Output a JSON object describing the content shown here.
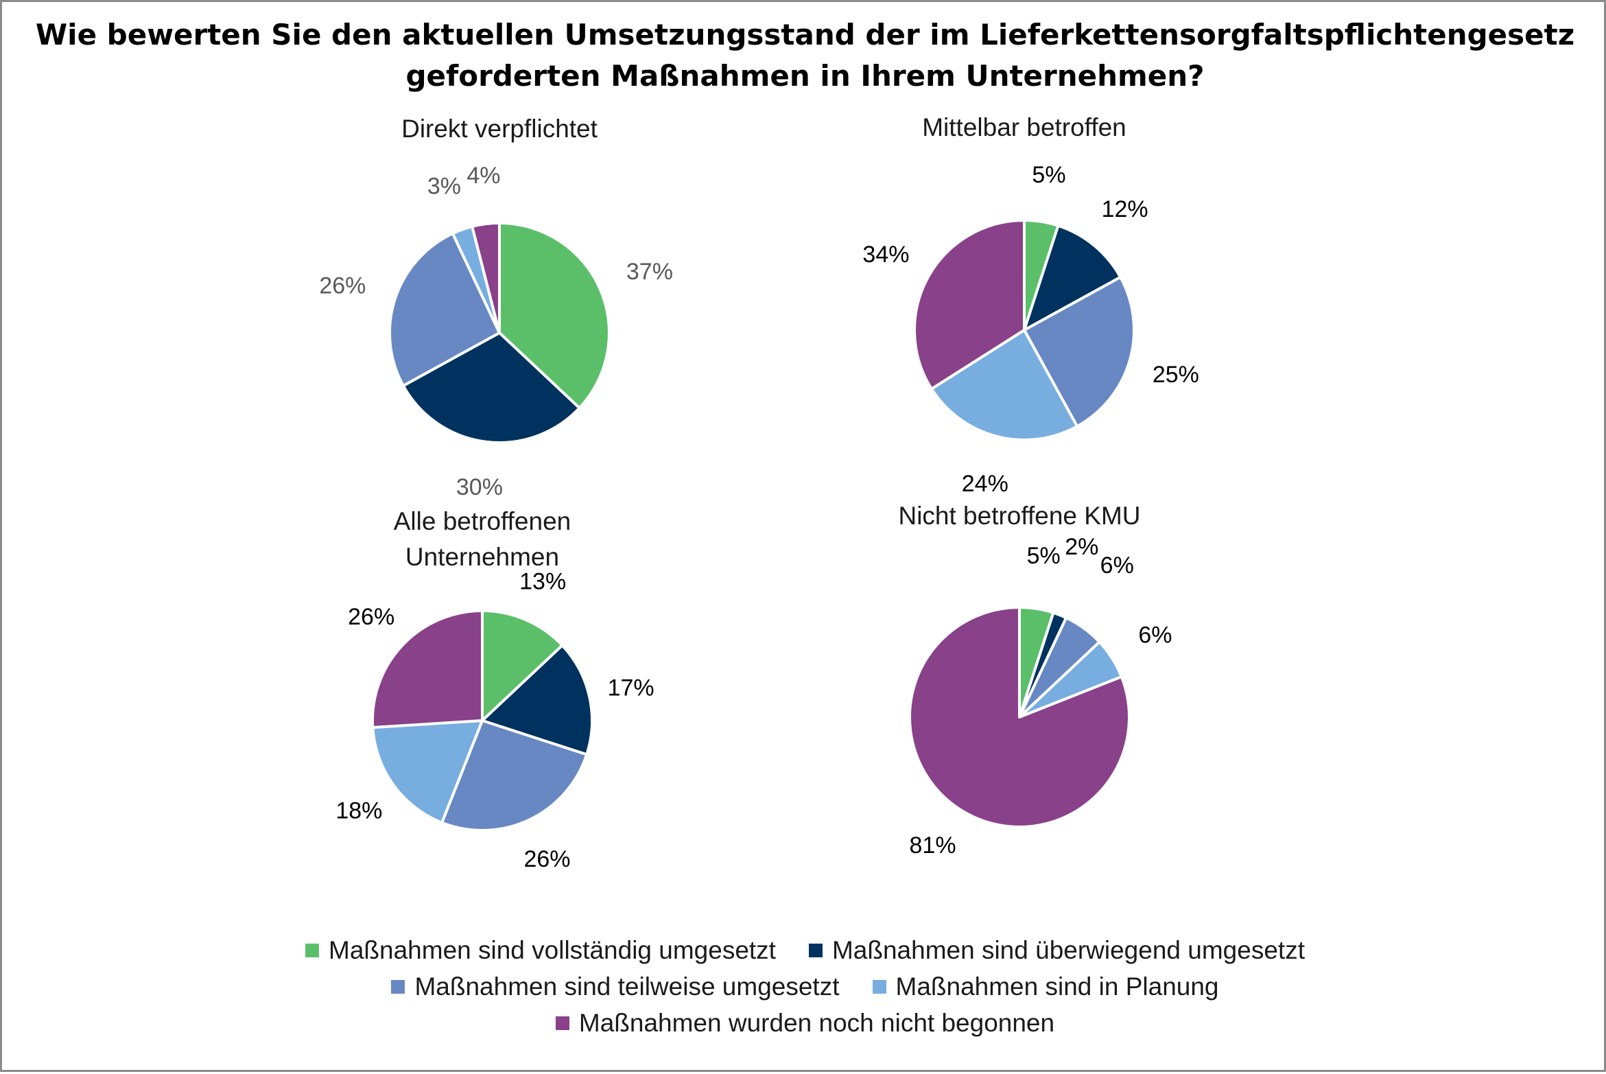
{
  "title": {
    "line1": "Wie bewerten Sie den aktuellen Umsetzungsstand der im Lieferkettensorgfaltspflichtengesetz",
    "line2": "geforderten Maßnahmen in Ihrem Unternehmen?"
  },
  "categories": [
    "Maßnahmen sind vollständig umgesetzt",
    "Maßnahmen sind überwiegend umgesetzt",
    "Maßnahmen sind teilweise umgesetzt",
    "Maßnahmen sind in Planung",
    "Maßnahmen wurden noch nicht begonnen"
  ],
  "colors": [
    "#5bbf6a",
    "#00325f",
    "#6888c3",
    "#78ade0",
    "#89418a"
  ],
  "chart_data": [
    {
      "type": "pie",
      "title": "Direkt verpflichtet",
      "categories": [
        "Maßnahmen sind vollständig umgesetzt",
        "Maßnahmen sind überwiegend umgesetzt",
        "Maßnahmen sind teilweise umgesetzt",
        "Maßnahmen sind in Planung",
        "Maßnahmen wurden noch nicht begonnen"
      ],
      "values": [
        37,
        30,
        26,
        3,
        4
      ],
      "labels": [
        "37%",
        "30%",
        "26%",
        "3%",
        "4%"
      ],
      "label_color": "#595959"
    },
    {
      "type": "pie",
      "title": "Mittelbar betroffen",
      "categories": [
        "Maßnahmen sind vollständig umgesetzt",
        "Maßnahmen sind überwiegend umgesetzt",
        "Maßnahmen sind teilweise umgesetzt",
        "Maßnahmen sind in Planung",
        "Maßnahmen wurden noch nicht begonnen"
      ],
      "values": [
        5,
        12,
        25,
        24,
        34
      ],
      "labels": [
        "5%",
        "12%",
        "25%",
        "24%",
        "34%"
      ],
      "label_color": "#000000"
    },
    {
      "type": "pie",
      "title": "Alle betroffenen Unternehmen",
      "title_lines": [
        "Alle betroffenen",
        "Unternehmen"
      ],
      "categories": [
        "Maßnahmen sind vollständig umgesetzt",
        "Maßnahmen sind überwiegend umgesetzt",
        "Maßnahmen sind teilweise umgesetzt",
        "Maßnahmen sind in Planung",
        "Maßnahmen wurden noch nicht begonnen"
      ],
      "values": [
        13,
        17,
        26,
        18,
        26
      ],
      "labels": [
        "13%",
        "17%",
        "26%",
        "18%",
        "26%"
      ],
      "label_color": "#000000"
    },
    {
      "type": "pie",
      "title": "Nicht betroffene KMU",
      "categories": [
        "Maßnahmen sind vollständig umgesetzt",
        "Maßnahmen sind überwiegend umgesetzt",
        "Maßnahmen sind teilweise umgesetzt",
        "Maßnahmen sind in Planung",
        "Maßnahmen wurden noch nicht begonnen"
      ],
      "values": [
        5,
        2,
        6,
        6,
        81
      ],
      "labels": [
        "5%",
        "2%",
        "6%",
        "6%",
        "81%"
      ],
      "label_color": "#000000"
    }
  ]
}
